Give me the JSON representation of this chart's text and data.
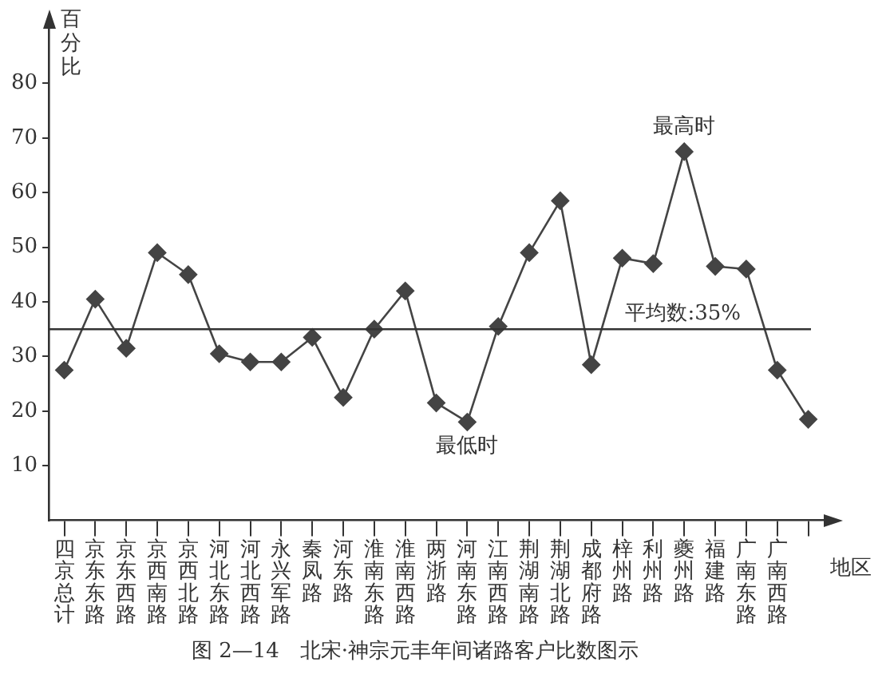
{
  "chart_data": {
    "type": "line",
    "title": "图 2—14　北宋·神宗元丰年间诸路客户比数图示",
    "xlabel": "地区",
    "ylabel": "百分比",
    "categories": [
      "四京总计",
      "京东东路",
      "京东西路",
      "京西南路",
      "京西北路",
      "河北东路",
      "河北西路",
      "永兴军路",
      "秦凤路",
      "河东路",
      "淮南东路",
      "淮南西路",
      "两浙路",
      "河南东路",
      "江南西路",
      "荆湖南路",
      "荆湖北路",
      "成都府路",
      "梓州路",
      "利州路",
      "夔州路",
      "福建路",
      "广南东路",
      "广南西路",
      null
    ],
    "series": [
      {
        "color": "#444444",
        "values": [
          27.5,
          40.5,
          31.5,
          49,
          45,
          30.5,
          29,
          29,
          33.5,
          22.5,
          35,
          42,
          21.5,
          18,
          35.5,
          49,
          58.5,
          28.5,
          48,
          47,
          67.5,
          46.5,
          46,
          27.5,
          18.5
        ]
      }
    ],
    "ylim": [
      0,
      90
    ],
    "yticks": [
      10,
      20,
      30,
      40,
      50,
      60,
      70,
      80
    ],
    "ref_lines": [
      {
        "axis": "y",
        "value": 35,
        "label": "平均数:35%"
      }
    ],
    "annotations": [
      {
        "text": "最高时",
        "x": "夔州路",
        "y": 67.5
      },
      {
        "text": "最低时",
        "x": "河南东路",
        "y": 18
      }
    ],
    "marker": "diamond",
    "line_style": "solid",
    "grid": false,
    "legend": false
  }
}
